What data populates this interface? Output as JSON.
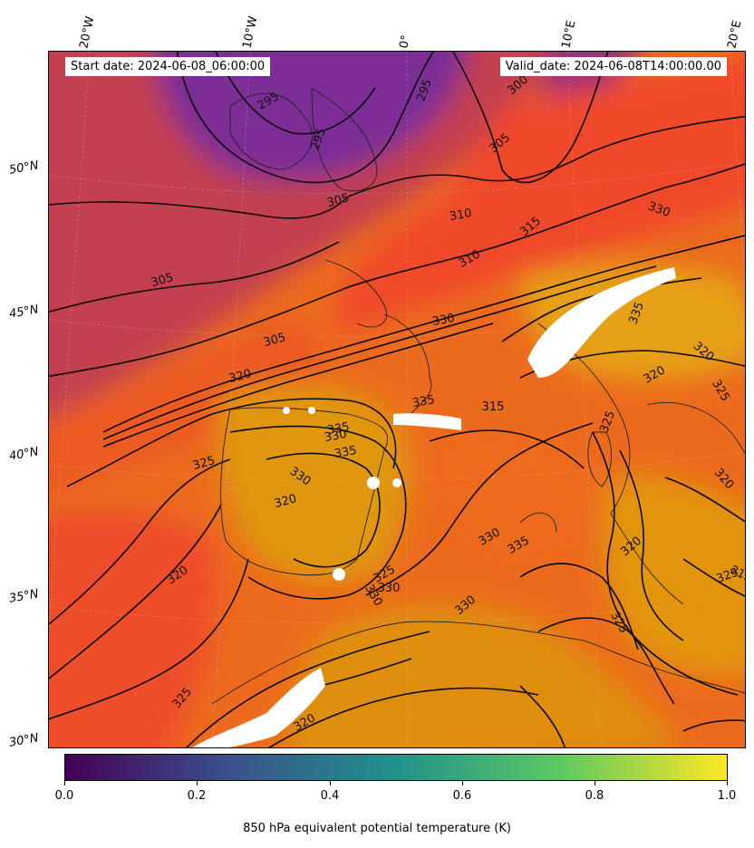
{
  "info": {
    "start_date": "Start date: 2024-06-08_06:00:00",
    "valid_date": "Valid_date: 2024-06-08T14:00:00.00"
  },
  "lon_labels": [
    "20°W",
    "10°W",
    "0°",
    "10°E",
    "20°E"
  ],
  "lat_labels": [
    "50°N",
    "45°N",
    "40°N",
    "35°N",
    "30°N"
  ],
  "colorbar": {
    "ticks": [
      "0.0",
      "0.2",
      "0.4",
      "0.6",
      "0.8",
      "1.0"
    ],
    "label": "850 hPa equivalent potential temperature (K)",
    "colormap": "viridis",
    "colors": [
      "#440154",
      "#3b528b",
      "#21918c",
      "#5ec962",
      "#fde725"
    ]
  },
  "field": {
    "colormap": "plasma",
    "colors": {
      "cold": "#7b2d96",
      "mid": "#c2404f",
      "warm": "#f04a2a",
      "hot": "#e08a10",
      "hottest": "#e8a415"
    }
  },
  "contour_labels": [
    "295",
    "295",
    "295",
    "300",
    "305",
    "305",
    "305",
    "305",
    "310",
    "310",
    "315",
    "320",
    "320",
    "320",
    "325",
    "325",
    "325",
    "330",
    "330",
    "330",
    "330",
    "335",
    "335",
    "335",
    "335",
    "315",
    "320",
    "325",
    "325",
    "330",
    "330",
    "315",
    "320",
    "320",
    "325",
    "330",
    "330",
    "335",
    "320",
    "320",
    "325"
  ]
}
